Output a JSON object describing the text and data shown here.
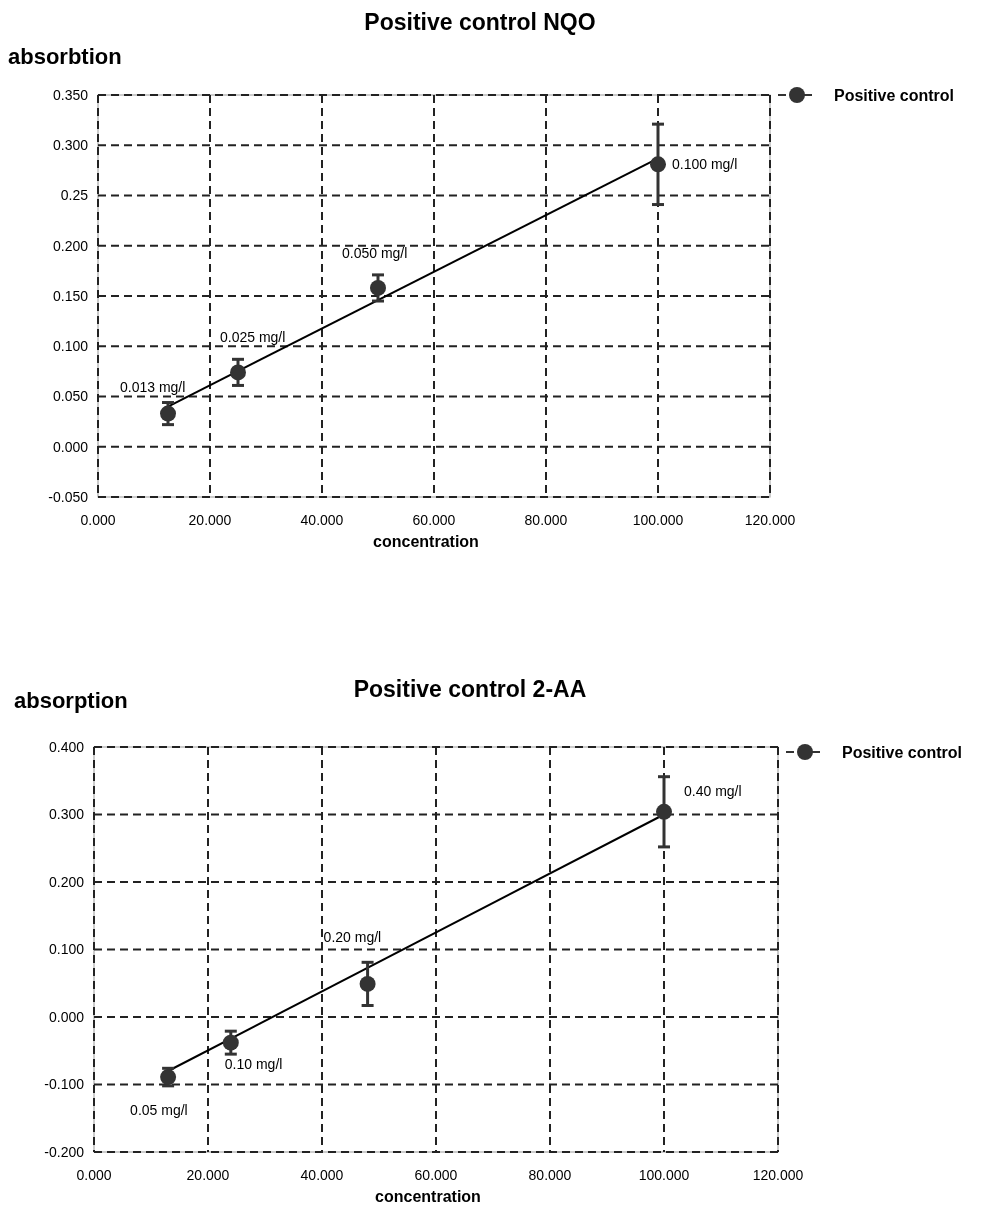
{
  "chart_data": [
    {
      "type": "scatter",
      "title": "Positive control NQO",
      "ylabel": "absorbtion",
      "xlabel": "concentration",
      "xlim": [
        0,
        120
      ],
      "ylim": [
        -0.05,
        0.35
      ],
      "xticks": [
        {
          "value": 0,
          "label": "0.000"
        },
        {
          "value": 20,
          "label": "20.000"
        },
        {
          "value": 40,
          "label": "40.000"
        },
        {
          "value": 60,
          "label": "60.000"
        },
        {
          "value": 80,
          "label": "80.000"
        },
        {
          "value": 100,
          "label": "100.000"
        },
        {
          "value": 120,
          "label": "120.000"
        }
      ],
      "yticks": [
        {
          "value": -0.05,
          "label": "-0.050"
        },
        {
          "value": 0,
          "label": "0.000"
        },
        {
          "value": 0.05,
          "label": "0.050"
        },
        {
          "value": 0.1,
          "label": "0.100"
        },
        {
          "value": 0.15,
          "label": "0.150"
        },
        {
          "value": 0.2,
          "label": "0.200"
        },
        0.25,
        {
          "value": 0.3,
          "label": "0.300"
        },
        {
          "value": 0.35,
          "label": "0.350"
        }
      ],
      "grid": true,
      "legend": "top right",
      "series": [
        {
          "name": "Positive control",
          "marker": "circle",
          "color": "#333333",
          "x": [
            12.5,
            25,
            50,
            100
          ],
          "values": [
            0.033,
            0.074,
            0.158,
            0.281
          ],
          "errors": [
            0.011,
            0.013,
            0.013,
            0.04
          ]
        },
        {
          "type": "line",
          "marker": "none",
          "line_style": "solid",
          "color": "#000000",
          "x": [
            12.5,
            100
          ],
          "values": [
            0.04,
            0.287
          ]
        }
      ],
      "annotations": [
        {
          "text": "0.013 mg/l",
          "x": 12.5,
          "y": 0.033
        },
        {
          "text": "0.025 mg/l",
          "x": 25,
          "y": 0.074
        },
        {
          "text": "0.050 mg/l",
          "x": 50,
          "y": 0.158
        },
        {
          "text": "0.100 mg/l",
          "x": 100,
          "y": 0.281
        }
      ]
    },
    {
      "type": "scatter",
      "title": "Positive control 2-AA",
      "ylabel": "absorption",
      "xlabel": "concentration",
      "xlim": [
        0,
        120
      ],
      "ylim": [
        -0.2,
        0.4
      ],
      "xticks": [
        {
          "value": 0,
          "label": "0.000"
        },
        {
          "value": 20,
          "label": "20.000"
        },
        {
          "value": 40,
          "label": "40.000"
        },
        {
          "value": 60,
          "label": "60.000"
        },
        {
          "value": 80,
          "label": "80.000"
        },
        {
          "value": 100,
          "label": "100.000"
        },
        {
          "value": 120,
          "label": "120.000"
        }
      ],
      "yticks": [
        {
          "value": -0.2,
          "label": "-0.200"
        },
        {
          "value": -0.1,
          "label": "-0.100"
        },
        {
          "value": 0,
          "label": "0.000"
        },
        {
          "value": 0.1,
          "label": "0.100"
        },
        {
          "value": 0.2,
          "label": "0.200"
        },
        {
          "value": 0.3,
          "label": "0.300"
        },
        {
          "value": 0.4,
          "label": "0.400"
        }
      ],
      "grid": true,
      "legend": "top right",
      "series": [
        {
          "name": "Positive control",
          "marker": "circle",
          "color": "#333333",
          "x": [
            13,
            24,
            48,
            100
          ],
          "values": [
            -0.089,
            -0.038,
            0.049,
            0.304
          ],
          "errors": [
            0.013,
            0.017,
            0.032,
            0.052
          ]
        },
        {
          "type": "line",
          "marker": "none",
          "line_style": "solid",
          "color": "#000000",
          "x": [
            13,
            100
          ],
          "values": [
            -0.08,
            0.3
          ]
        }
      ],
      "annotations": [
        {
          "text": "0.05 mg/l",
          "x": 13,
          "y": -0.089
        },
        {
          "text": "0.10 mg/l",
          "x": 24,
          "y": -0.038
        },
        {
          "text": "0.20 mg/l",
          "x": 48,
          "y": 0.049
        },
        {
          "text": "0.40 mg/l",
          "x": 100,
          "y": 0.304
        }
      ]
    }
  ]
}
